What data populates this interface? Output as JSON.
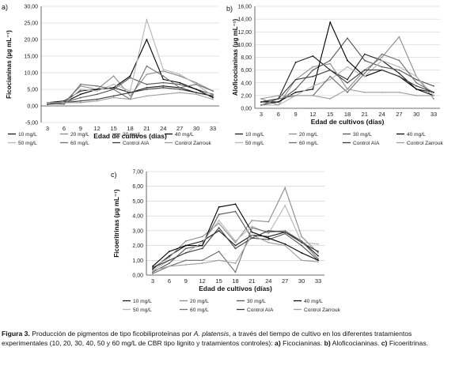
{
  "chart_data": [
    {
      "panel_label": "a)",
      "type": "line",
      "ylabel": "Ficocianinas (µg mL⁻¹)",
      "xlabel": "Edad de cultivos (días)",
      "ylim": [
        -5,
        30
      ],
      "yticks": [
        "-5,00",
        "0,00",
        "5,00",
        "10,00",
        "15,00",
        "20,00",
        "25,00",
        "30,00"
      ],
      "x": [
        3,
        6,
        9,
        12,
        15,
        18,
        21,
        24,
        27,
        30,
        33
      ],
      "series": [
        {
          "name": "10 mg/L",
          "values": [
            1.0,
            1.5,
            4.5,
            5.0,
            5.5,
            4.0,
            5.5,
            6.0,
            5.5,
            4.0,
            3.0
          ]
        },
        {
          "name": "20 mg/L",
          "values": [
            0.5,
            1.0,
            6.0,
            5.0,
            9.0,
            3.0,
            9.5,
            10.5,
            9.0,
            7.0,
            4.5
          ]
        },
        {
          "name": "30 mg/L",
          "values": [
            1.0,
            1.0,
            2.5,
            3.5,
            5.0,
            8.5,
            6.5,
            7.0,
            6.5,
            5.0,
            3.5
          ]
        },
        {
          "name": "40 mg/L",
          "values": [
            0.5,
            1.0,
            3.5,
            5.0,
            5.5,
            9.0,
            20.0,
            8.0,
            7.0,
            5.0,
            2.5
          ]
        },
        {
          "name": "50 mg/L",
          "values": [
            0.5,
            0.5,
            5.0,
            4.5,
            6.5,
            4.5,
            26.0,
            11.0,
            9.5,
            6.5,
            3.0
          ]
        },
        {
          "name": "60 mg/L",
          "values": [
            1.0,
            0.5,
            6.5,
            6.0,
            5.0,
            2.0,
            12.0,
            9.0,
            5.5,
            6.5,
            4.5
          ]
        },
        {
          "name": "Control AIA",
          "values": [
            0.5,
            1.0,
            1.5,
            2.0,
            3.0,
            4.0,
            5.0,
            5.5,
            5.0,
            4.0,
            3.0
          ]
        },
        {
          "name": "Control Zarrouk",
          "values": [
            1.0,
            1.0,
            1.0,
            1.5,
            2.5,
            2.0,
            3.0,
            3.5,
            4.0,
            3.5,
            2.0
          ]
        }
      ]
    },
    {
      "panel_label": "b)",
      "type": "line",
      "ylabel": "Aloficocianinas (µg mL⁻¹)",
      "xlabel": "Edad de cultivos (días)",
      "ylim": [
        0,
        16
      ],
      "yticks": [
        "0,00",
        "2,00",
        "4,00",
        "6,00",
        "8,00",
        "10,00",
        "12,00",
        "14,00",
        "16,00"
      ],
      "x": [
        3,
        6,
        9,
        12,
        15,
        18,
        21,
        24,
        27,
        30,
        33
      ],
      "series": [
        {
          "name": "10 mg/L",
          "values": [
            1.0,
            1.5,
            7.2,
            8.2,
            6.0,
            4.5,
            8.5,
            7.5,
            5.5,
            3.0,
            2.5
          ]
        },
        {
          "name": "20 mg/L",
          "values": [
            1.5,
            0.5,
            4.5,
            6.5,
            7.0,
            3.0,
            6.0,
            8.0,
            11.2,
            5.0,
            1.5
          ]
        },
        {
          "name": "30 mg/L",
          "values": [
            0.5,
            1.0,
            3.0,
            6.0,
            7.5,
            11.0,
            7.5,
            6.5,
            6.0,
            4.5,
            3.5
          ]
        },
        {
          "name": "40 mg/L",
          "values": [
            1.0,
            1.0,
            2.5,
            3.0,
            13.5,
            7.5,
            5.0,
            6.0,
            5.0,
            3.0,
            2.0
          ]
        },
        {
          "name": "50 mg/L",
          "values": [
            0.5,
            0.5,
            2.0,
            3.5,
            4.5,
            6.5,
            5.0,
            7.5,
            6.5,
            5.0,
            2.0
          ]
        },
        {
          "name": "60 mg/L",
          "values": [
            0.5,
            1.5,
            2.0,
            2.0,
            5.0,
            2.5,
            5.5,
            8.5,
            7.5,
            4.0,
            2.5
          ]
        },
        {
          "name": "Control AIA",
          "values": [
            1.0,
            1.5,
            4.5,
            5.0,
            6.0,
            4.0,
            6.0,
            6.0,
            5.0,
            3.5,
            2.5
          ]
        },
        {
          "name": "Control Zarrouk",
          "values": [
            1.5,
            2.0,
            2.0,
            2.0,
            1.5,
            3.0,
            2.5,
            2.5,
            2.5,
            2.0,
            2.0
          ]
        }
      ]
    },
    {
      "panel_label": "c)",
      "type": "line",
      "ylabel": "Ficoeritrinas (µg mL⁻¹)",
      "xlabel": "Edad de cultivos (días)",
      "ylim": [
        0,
        7
      ],
      "yticks": [
        "0,00",
        "1,00",
        "2,00",
        "3,00",
        "4,00",
        "5,00",
        "6,00",
        "7,00"
      ],
      "x": [
        3,
        6,
        9,
        12,
        15,
        18,
        21,
        24,
        27,
        30,
        33
      ],
      "series": [
        {
          "name": "10 mg/L",
          "values": [
            0.4,
            1.3,
            2.0,
            2.3,
            3.0,
            2.0,
            2.7,
            2.6,
            2.9,
            2.3,
            1.3
          ]
        },
        {
          "name": "20 mg/L",
          "values": [
            0.5,
            1.2,
            2.3,
            2.6,
            3.5,
            2.2,
            3.7,
            3.6,
            5.9,
            2.6,
            1.5
          ]
        },
        {
          "name": "30 mg/L",
          "values": [
            0.2,
            0.8,
            1.8,
            2.0,
            4.1,
            4.3,
            2.5,
            2.4,
            2.8,
            2.0,
            1.0
          ]
        },
        {
          "name": "40 mg/L",
          "values": [
            0.6,
            1.6,
            2.0,
            2.0,
            4.6,
            4.8,
            2.9,
            2.5,
            2.1,
            1.5,
            1.0
          ]
        },
        {
          "name": "50 mg/L",
          "values": [
            0.3,
            1.0,
            1.5,
            2.2,
            3.7,
            2.3,
            3.3,
            2.8,
            4.7,
            2.2,
            2.1
          ]
        },
        {
          "name": "60 mg/L",
          "values": [
            0.1,
            0.6,
            1.0,
            1.0,
            1.6,
            0.2,
            3.2,
            2.9,
            3.0,
            2.3,
            1.1
          ]
        },
        {
          "name": "Control AIA",
          "values": [
            0.5,
            1.0,
            1.5,
            1.8,
            3.2,
            1.8,
            2.5,
            3.0,
            2.9,
            2.2,
            1.6
          ]
        },
        {
          "name": "Control Zarrouk",
          "values": [
            0.3,
            0.6,
            0.7,
            0.8,
            1.0,
            0.8,
            2.7,
            2.2,
            2.0,
            1.0,
            0.9
          ]
        }
      ]
    }
  ],
  "series_colors": [
    "#1a1a1a",
    "#8a8a8a",
    "#555555",
    "#000000",
    "#b5b5b5",
    "#6e6e6e",
    "#3a3a3a",
    "#9e9e9e"
  ],
  "caption": {
    "label": "Figura 3.",
    "text_1": "Producción de pigmentos de tipo ficobiliproteínas por ",
    "species": "A. platensis",
    "text_2": ", a través  del tiempo de cultivo en los diferentes tratamientos experimentales (10, 20, 30, 40, 50 y 60 mg/L de CBR tipo lignito y tratamientos controles): ",
    "a_label": "a)",
    "a_text": " Ficocianinas. ",
    "b_label": "b)",
    "b_text": " Aloficocianinas. ",
    "c_label": "c)",
    "c_text": " Ficoeritrinas."
  }
}
